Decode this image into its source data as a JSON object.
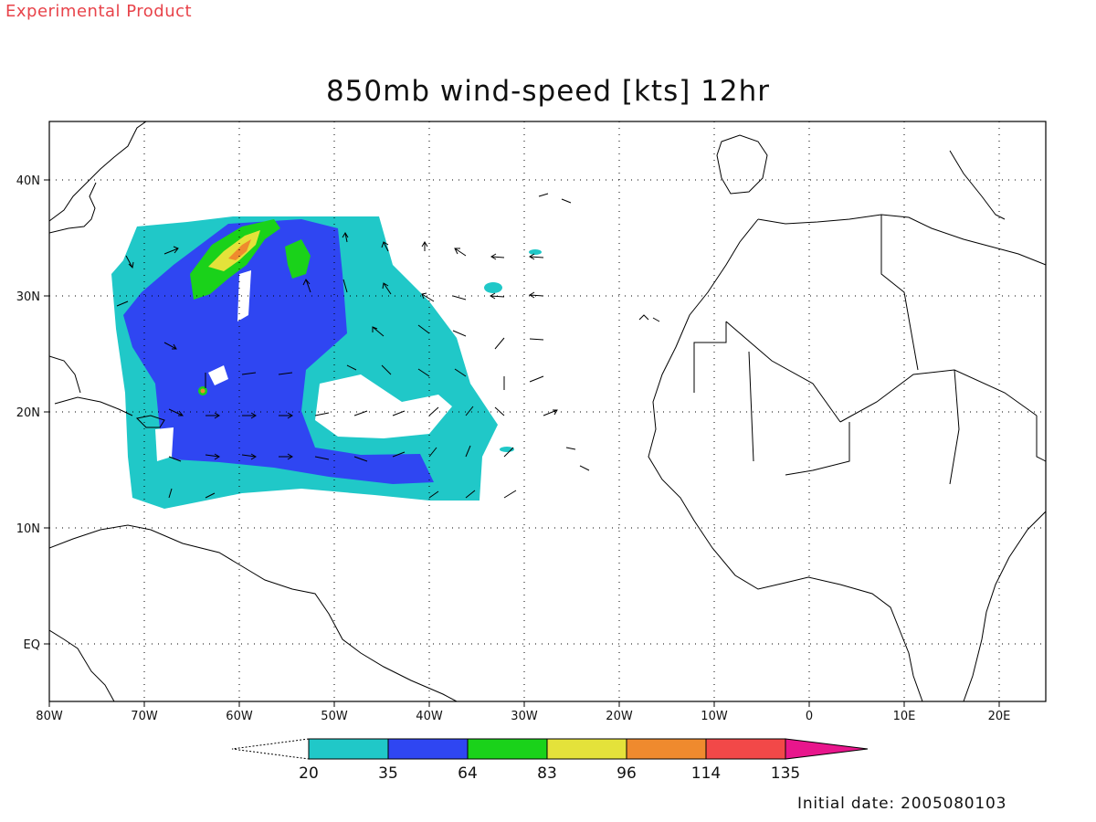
{
  "header": {
    "experimental_label": "Experimental Product",
    "title": "850mb wind-speed [kts] 12hr"
  },
  "map": {
    "lon_labels": [
      "80W",
      "70W",
      "60W",
      "50W",
      "40W",
      "30W",
      "20W",
      "10W",
      "0",
      "10E",
      "20E"
    ],
    "lat_labels": [
      "40N",
      "30N",
      "20N",
      "10N",
      "EQ"
    ],
    "grid": "dotted"
  },
  "colorbar": {
    "tick_labels": [
      "20",
      "35",
      "64",
      "83",
      "96",
      "114",
      "135"
    ],
    "colors": [
      "#20c8c8",
      "#2f46f2",
      "#1ad21a",
      "#e4e23a",
      "#ef8a2e",
      "#f24848",
      "#e8168c"
    ]
  },
  "footer": {
    "initial_date": "Initial date: 2005080103"
  }
}
